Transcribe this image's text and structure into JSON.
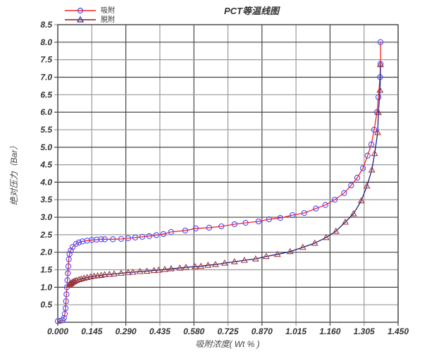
{
  "chart_data": {
    "type": "line",
    "title": "PCT等温线图",
    "xlabel": "吸附浓度( Wt % )",
    "ylabel": "绝对压力（Bar）",
    "xlim": [
      0,
      1.45
    ],
    "ylim": [
      0,
      8.5
    ],
    "xticks": [
      "0.000",
      "0.145",
      "0.290",
      "0.435",
      "0.580",
      "0.725",
      "0.870",
      "1.015",
      "1.160",
      "1.305",
      "1.450"
    ],
    "yticks": [
      "0.5",
      "1.0",
      "1.5",
      "2.0",
      "2.5",
      "3.0",
      "3.5",
      "4.0",
      "4.5",
      "5.0",
      "5.5",
      "6.0",
      "6.5",
      "7.0",
      "7.5",
      "8.0",
      "8.5"
    ],
    "grid": true,
    "legend_position": "top-left",
    "series": [
      {
        "name": "吸附",
        "line_color": "#ff2020",
        "marker": "circle",
        "marker_color": "#4a4aff",
        "x": [
          0.0,
          0.01,
          0.02,
          0.026,
          0.03,
          0.033,
          0.035,
          0.037,
          0.039,
          0.041,
          0.043,
          0.045,
          0.047,
          0.05,
          0.055,
          0.063,
          0.078,
          0.09,
          0.105,
          0.125,
          0.145,
          0.165,
          0.185,
          0.2,
          0.235,
          0.27,
          0.3,
          0.33,
          0.36,
          0.39,
          0.42,
          0.45,
          0.483,
          0.543,
          0.588,
          0.645,
          0.697,
          0.753,
          0.8,
          0.855,
          0.9,
          0.948,
          1.0,
          1.05,
          1.1,
          1.14,
          1.18,
          1.22,
          1.25,
          1.276,
          1.3,
          1.32,
          1.336,
          1.348,
          1.36,
          1.366,
          1.373,
          1.375,
          1.375
        ],
        "y": [
          0.03,
          0.04,
          0.06,
          0.12,
          0.24,
          0.4,
          0.6,
          0.8,
          1.0,
          1.2,
          1.4,
          1.6,
          1.8,
          1.95,
          2.05,
          2.15,
          2.24,
          2.28,
          2.31,
          2.33,
          2.35,
          2.36,
          2.37,
          2.37,
          2.37,
          2.38,
          2.4,
          2.42,
          2.44,
          2.46,
          2.49,
          2.52,
          2.58,
          2.62,
          2.68,
          2.7,
          2.74,
          2.8,
          2.84,
          2.88,
          2.94,
          2.98,
          3.06,
          3.12,
          3.25,
          3.35,
          3.5,
          3.69,
          3.91,
          4.13,
          4.4,
          4.76,
          5.08,
          5.5,
          6.0,
          6.43,
          7.0,
          7.38,
          8.0
        ]
      },
      {
        "name": "脱附",
        "line_color": "#1c1c8a",
        "marker": "triangle",
        "marker_color": "#a03838",
        "x": [
          0.05,
          0.054,
          0.058,
          0.062,
          0.067,
          0.073,
          0.08,
          0.09,
          0.1,
          0.112,
          0.125,
          0.14,
          0.155,
          0.17,
          0.185,
          0.2,
          0.22,
          0.24,
          0.27,
          0.3,
          0.32,
          0.35,
          0.38,
          0.41,
          0.43,
          0.456,
          0.483,
          0.52,
          0.546,
          0.585,
          0.61,
          0.64,
          0.672,
          0.711,
          0.753,
          0.795,
          0.843,
          0.888,
          0.936,
          0.99,
          1.044,
          1.095,
          1.143,
          1.185,
          1.225,
          1.26,
          1.293,
          1.317,
          1.338,
          1.35,
          1.363,
          1.366,
          1.373,
          1.375
        ],
        "y": [
          1.08,
          1.1,
          1.12,
          1.14,
          1.16,
          1.18,
          1.2,
          1.22,
          1.24,
          1.26,
          1.28,
          1.3,
          1.32,
          1.33,
          1.34,
          1.36,
          1.37,
          1.38,
          1.4,
          1.42,
          1.43,
          1.45,
          1.46,
          1.48,
          1.49,
          1.51,
          1.53,
          1.55,
          1.57,
          1.59,
          1.6,
          1.63,
          1.65,
          1.69,
          1.73,
          1.77,
          1.81,
          1.88,
          1.94,
          2.02,
          2.14,
          2.26,
          2.42,
          2.6,
          2.86,
          3.1,
          3.47,
          3.89,
          4.35,
          4.82,
          5.42,
          5.99,
          6.63,
          7.36
        ]
      }
    ]
  }
}
